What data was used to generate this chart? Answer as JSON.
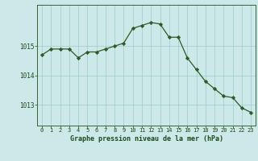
{
  "hours": [
    0,
    1,
    2,
    3,
    4,
    5,
    6,
    7,
    8,
    9,
    10,
    11,
    12,
    13,
    14,
    15,
    16,
    17,
    18,
    19,
    20,
    21,
    22,
    23
  ],
  "pressure": [
    1014.7,
    1014.9,
    1014.9,
    1014.9,
    1014.6,
    1014.8,
    1014.8,
    1014.9,
    1015.0,
    1015.1,
    1015.6,
    1015.7,
    1015.8,
    1015.75,
    1015.3,
    1015.3,
    1014.6,
    1014.2,
    1013.8,
    1013.55,
    1013.3,
    1013.25,
    1012.9,
    1012.75
  ],
  "line_color": "#2d5a27",
  "marker_color": "#2d5a27",
  "bg_color": "#cce8e8",
  "grid_color": "#99cccc",
  "xlabel": "Graphe pression niveau de la mer (hPa)",
  "xlabel_color": "#1a4a1a",
  "tick_color": "#1a4a1a",
  "yticks": [
    1013,
    1014,
    1015
  ],
  "ylim": [
    1012.3,
    1016.4
  ],
  "xlim": [
    -0.5,
    23.5
  ]
}
